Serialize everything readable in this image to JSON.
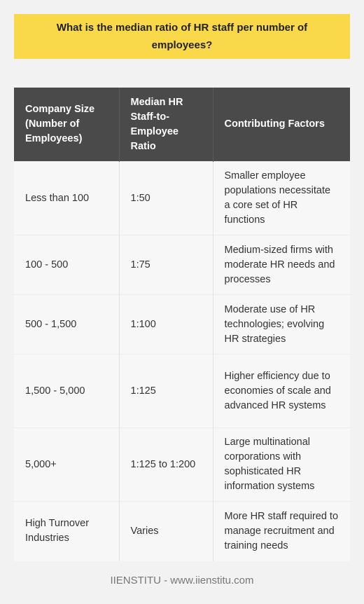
{
  "title": "What is the median ratio of HR staff per number of employees?",
  "table": {
    "headers": [
      "Company Size (Number of Employees)",
      "Median HR Staff-to-Employee Ratio",
      "Contributing Factors"
    ],
    "rows": [
      [
        "Less than 100",
        "1:50",
        "Smaller employee populations necessitate a core set of HR functions"
      ],
      [
        "100 - 500",
        "1:75",
        "Medium-sized firms with moderate HR needs and processes"
      ],
      [
        "500 - 1,500",
        "1:100",
        "Moderate use of HR technologies; evolving HR strategies"
      ],
      [
        "1,500 - 5,000",
        "1:125",
        "Higher efficiency due to economies of scale and advanced HR systems"
      ],
      [
        "5,000+",
        "1:125 to 1:200",
        "Large multinational corporations with sophisticated HR information systems"
      ],
      [
        "High Turnover Industries",
        "Varies",
        "More HR staff required to manage recruitment and training needs"
      ]
    ]
  },
  "footer": "IIENSTITU - www.iienstitu.com"
}
